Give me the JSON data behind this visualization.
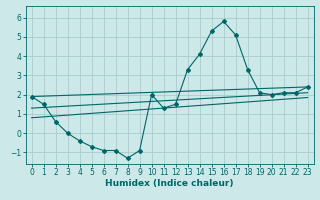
{
  "title": "",
  "xlabel": "Humidex (Indice chaleur)",
  "ylabel": "",
  "background_color": "#cce8e8",
  "grid_color": "#aacccc",
  "line_color": "#006666",
  "spine_color": "#006666",
  "xlim": [
    -0.5,
    23.5
  ],
  "ylim": [
    -1.6,
    6.6
  ],
  "xticks": [
    0,
    1,
    2,
    3,
    4,
    5,
    6,
    7,
    8,
    9,
    10,
    11,
    12,
    13,
    14,
    15,
    16,
    17,
    18,
    19,
    20,
    21,
    22,
    23
  ],
  "yticks": [
    -1,
    0,
    1,
    2,
    3,
    4,
    5,
    6
  ],
  "series1_x": [
    0,
    1,
    2,
    3,
    4,
    5,
    6,
    7,
    8,
    9,
    10,
    11,
    12,
    13,
    14,
    15,
    16,
    17,
    18,
    19,
    20,
    21,
    22,
    23
  ],
  "series1_y": [
    1.9,
    1.5,
    0.6,
    0.0,
    -0.4,
    -0.7,
    -0.9,
    -0.9,
    -1.3,
    -0.9,
    2.0,
    1.3,
    1.5,
    3.3,
    4.1,
    5.3,
    5.8,
    5.1,
    3.3,
    2.1,
    2.0,
    2.1,
    2.1,
    2.4
  ],
  "series2_x": [
    0,
    23
  ],
  "series2_y": [
    1.9,
    2.4
  ],
  "series3_x": [
    0,
    23
  ],
  "series3_y": [
    0.8,
    1.85
  ],
  "series4_x": [
    0,
    23
  ],
  "series4_y": [
    1.3,
    2.1
  ],
  "tick_fontsize": 5.5,
  "xlabel_fontsize": 6.5,
  "marker_size": 2.0,
  "line_width": 0.8
}
